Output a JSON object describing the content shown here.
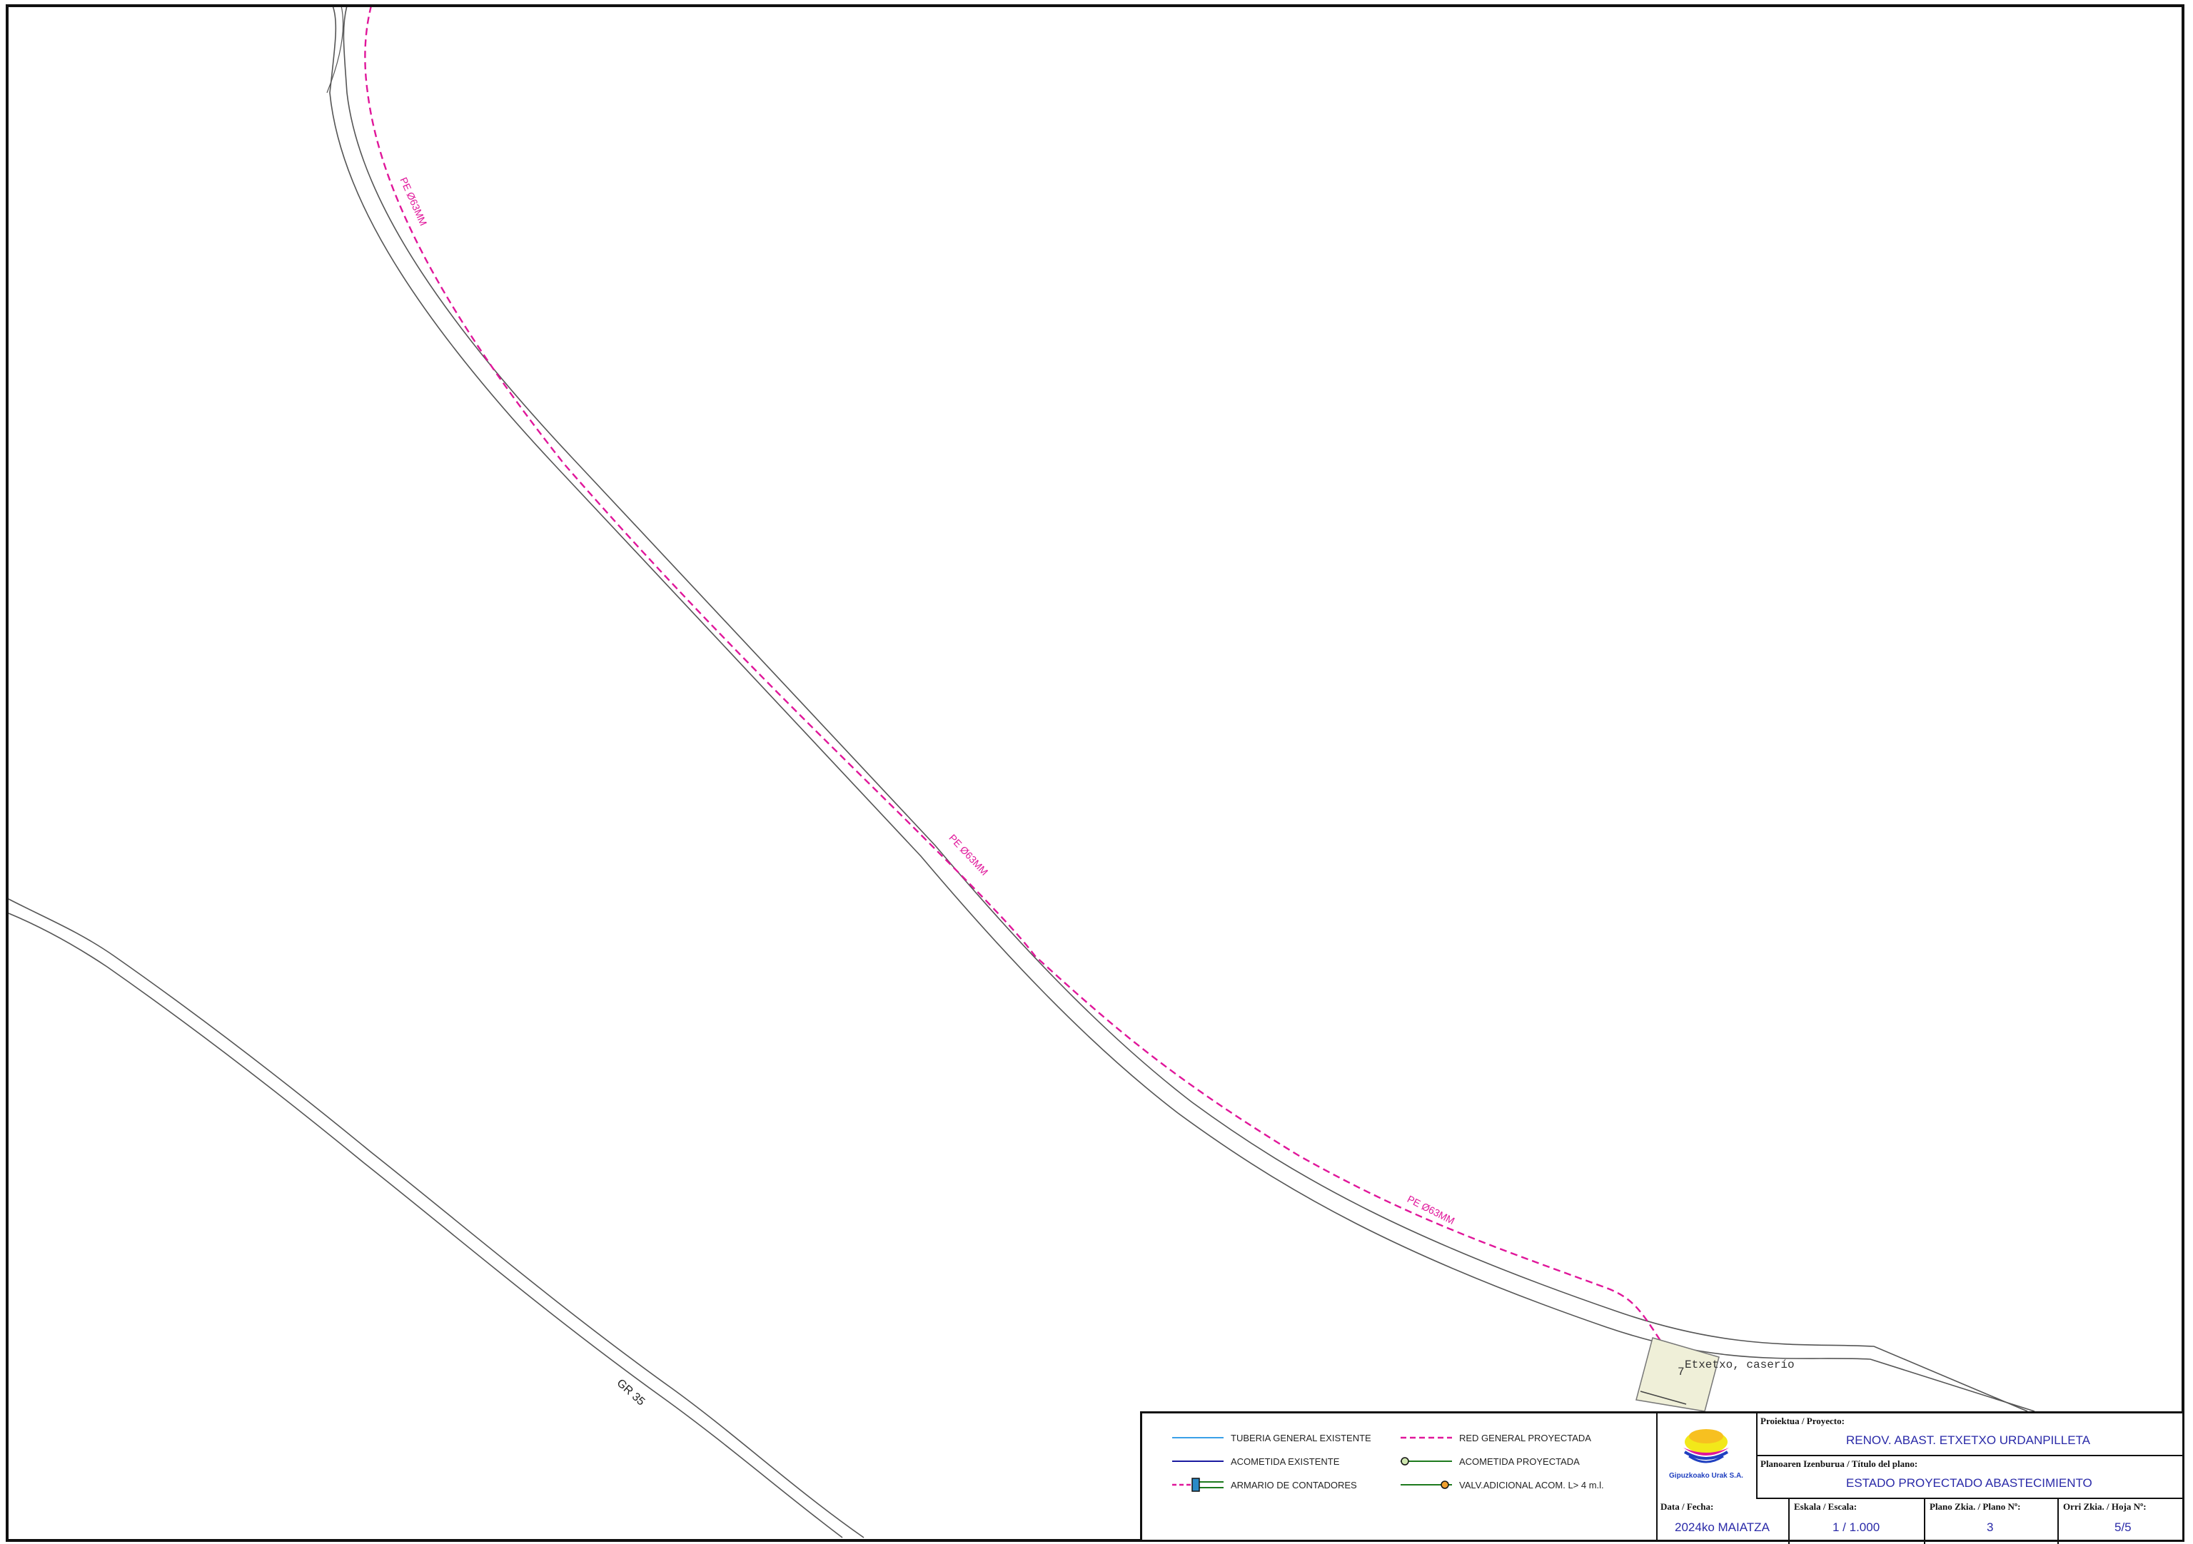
{
  "map": {
    "pipe_labels": [
      "PE Ø63MM",
      "PE Ø63MM",
      "PE Ø63MM"
    ],
    "road_label": "GR 35",
    "place_number": "7",
    "place_name": "Etxetxo, caserío",
    "colors": {
      "projected_network": "#e0169a",
      "existing_main": "#3aa0e8",
      "existing_connection": "#1a1aa0",
      "projected_connection": "#1d7a1d",
      "road": "#555555",
      "building": "#efefd8"
    }
  },
  "legend": {
    "items": [
      {
        "label": "TUBERIA GENERAL EXISTENTE",
        "icon": "solid-light-blue-line"
      },
      {
        "label": "RED GENERAL PROYECTADA",
        "icon": "dashed-magenta-line"
      },
      {
        "label": "ACOMETIDA EXISTENTE",
        "icon": "solid-dark-blue-line"
      },
      {
        "label": "ACOMETIDA PROYECTADA",
        "icon": "green-line-with-node"
      },
      {
        "label": "ARMARIO DE CONTADORES",
        "icon": "meter-box-icon"
      },
      {
        "label": "VALV.ADICIONAL ACOM. L> 4 m.l.",
        "icon": "valve-icon"
      }
    ]
  },
  "logo": {
    "text": "Gipuzkoako Urak S.A."
  },
  "title_block": {
    "project_caption": "Proiektua / Proyecto:",
    "project_value": "RENOV. ABAST. ETXETXO URDANPILLETA",
    "plan_title_caption": "Planoaren Izenburua / Título del plano:",
    "plan_title_value": "ESTADO PROYECTADO ABASTECIMIENTO",
    "date_caption": "Data / Fecha:",
    "date_value": "2024ko MAIATZA",
    "scale_caption": "Eskala / Escala:",
    "scale_value": "1 / 1.000",
    "plan_no_caption": "Plano Zkia. / Plano Nº:",
    "plan_no_value": "3",
    "sheet_caption": "Orri Zkia. / Hoja Nº:",
    "sheet_value": "5/5"
  }
}
